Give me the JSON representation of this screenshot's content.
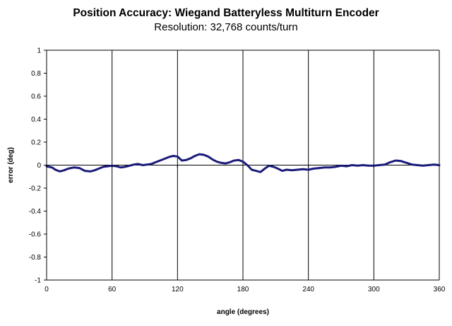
{
  "chart_data": {
    "type": "line",
    "title": "Position Accuracy: Wiegand Batteryless Multiturn Encoder",
    "subtitle": "Resolution: 32,768 counts/turn",
    "xlabel": "angle (degrees)",
    "ylabel": "error (deg)",
    "xlim": [
      0,
      360
    ],
    "ylim": [
      -1,
      1
    ],
    "x_ticks": [
      0,
      60,
      120,
      180,
      240,
      300,
      360
    ],
    "y_ticks": [
      1,
      0.8,
      0.6,
      0.4,
      0.2,
      0,
      -0.2,
      -0.4,
      -0.6,
      -0.8,
      -1
    ],
    "x_tick_labels": [
      "0",
      "60",
      "120",
      "180",
      "240",
      "300",
      "360"
    ],
    "y_tick_labels": [
      "1",
      "0.8",
      "0.6",
      "0.4",
      "0.2",
      "0",
      "-0.2",
      "-0.4",
      "-0.6",
      "-0.8",
      "-1"
    ],
    "grid": {
      "vertical": true,
      "horizontal": false
    },
    "line_color": "#1a1a7a",
    "series": [
      {
        "x": [
          0,
          5,
          8,
          12,
          16,
          20,
          25,
          30,
          35,
          40,
          44,
          48,
          52,
          56,
          60,
          64,
          68,
          72,
          76,
          80,
          84,
          88,
          92,
          96,
          100,
          104,
          108,
          112,
          116,
          120,
          124,
          128,
          132,
          136,
          140,
          144,
          148,
          152,
          156,
          160,
          164,
          168,
          172,
          176,
          180,
          184,
          188,
          192,
          196,
          200,
          204,
          208,
          212,
          216,
          220,
          225,
          230,
          235,
          240,
          245,
          250,
          255,
          260,
          265,
          270,
          275,
          280,
          285,
          290,
          295,
          300,
          305,
          310,
          315,
          320,
          325,
          330,
          335,
          340,
          345,
          350,
          355,
          360
        ],
        "y": [
          -0.01,
          -0.02,
          -0.04,
          -0.055,
          -0.045,
          -0.03,
          -0.02,
          -0.025,
          -0.05,
          -0.055,
          -0.045,
          -0.03,
          -0.015,
          -0.01,
          -0.005,
          -0.01,
          -0.02,
          -0.015,
          -0.005,
          0.005,
          0.01,
          0.0,
          0.005,
          0.01,
          0.025,
          0.04,
          0.055,
          0.07,
          0.08,
          0.075,
          0.04,
          0.045,
          0.06,
          0.08,
          0.095,
          0.09,
          0.075,
          0.05,
          0.03,
          0.02,
          0.015,
          0.025,
          0.04,
          0.045,
          0.03,
          0.0,
          -0.04,
          -0.05,
          -0.06,
          -0.03,
          -0.005,
          -0.015,
          -0.03,
          -0.05,
          -0.04,
          -0.045,
          -0.04,
          -0.035,
          -0.04,
          -0.03,
          -0.025,
          -0.02,
          -0.02,
          -0.015,
          -0.005,
          -0.01,
          0.0,
          -0.005,
          0.0,
          -0.005,
          -0.005,
          0.0,
          0.005,
          0.025,
          0.04,
          0.035,
          0.02,
          0.005,
          0.0,
          -0.005,
          0.0,
          0.005,
          0.0
        ]
      }
    ]
  }
}
